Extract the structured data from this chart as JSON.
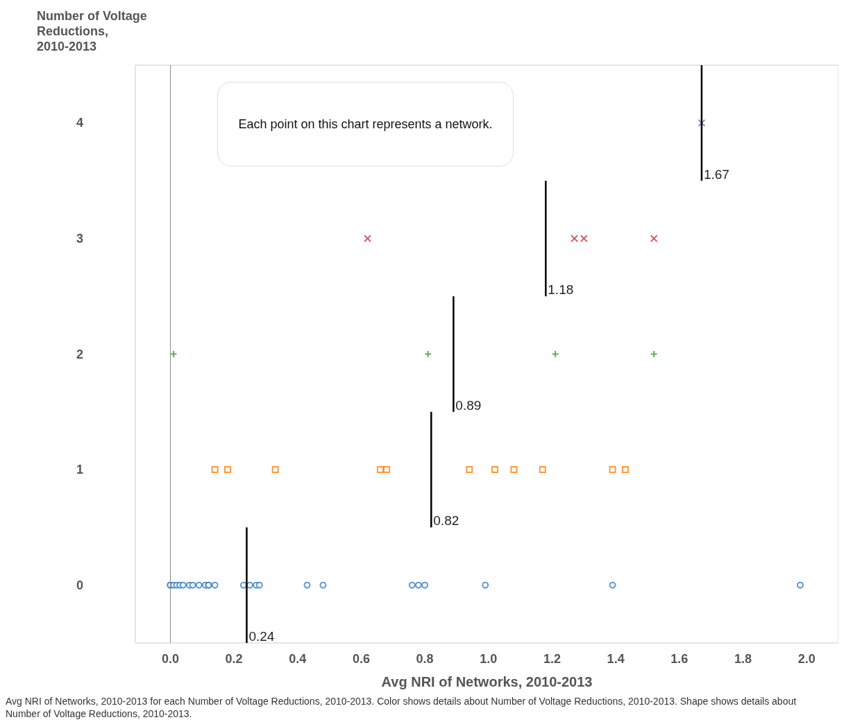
{
  "chart_data": {
    "type": "scatter",
    "ylabel": "Number of Voltage Reductions, 2010-2013",
    "xlabel": "Avg NRI of Networks, 2010-2013",
    "xlim": [
      -0.11,
      2.1
    ],
    "xticks": [
      {
        "value": 0,
        "label": "0.0"
      },
      {
        "value": 0.2,
        "label": "0.2"
      },
      {
        "value": 0.4,
        "label": "0.4"
      },
      {
        "value": 0.6,
        "label": "0.6"
      },
      {
        "value": 0.8,
        "label": "0.8"
      },
      {
        "value": 1,
        "label": "1.0"
      },
      {
        "value": 1.2,
        "label": "1.2"
      },
      {
        "value": 1.4,
        "label": "1.4"
      },
      {
        "value": 1.6,
        "label": "1.6"
      },
      {
        "value": 1.8,
        "label": "1.8"
      },
      {
        "value": 2,
        "label": "2.0"
      }
    ],
    "ylim": [
      -0.5,
      4.5
    ],
    "yticks": [
      0,
      1,
      2,
      3,
      4
    ],
    "grid": false,
    "series": [
      {
        "color": "#3a7dbf",
        "marker": "circle",
        "x": [
          0.0,
          0.0,
          0.01,
          0.02,
          0.03,
          0.04,
          0.06,
          0.07,
          0.09,
          0.11,
          0.12,
          0.12,
          0.14,
          0.23,
          0.25,
          0.27,
          0.28,
          0.43,
          0.48,
          0.76,
          0.78,
          0.8,
          0.99,
          1.39,
          1.98
        ],
        "values": [
          0,
          0,
          0,
          0,
          0,
          0,
          0,
          0,
          0,
          0,
          0,
          0,
          0,
          0,
          0,
          0,
          0,
          0,
          0,
          0,
          0,
          0,
          0,
          0,
          0
        ]
      },
      {
        "color": "#ff7f0e",
        "marker": "square",
        "x": [
          0.14,
          0.18,
          0.33,
          0.66,
          0.68,
          0.94,
          1.02,
          1.08,
          1.17,
          1.39,
          1.43
        ],
        "values": [
          1,
          1,
          1,
          1,
          1,
          1,
          1,
          1,
          1,
          1,
          1
        ]
      },
      {
        "color": "#2ca02c",
        "marker": "cross",
        "x": [
          0.01,
          0.81,
          1.21,
          1.52
        ],
        "values": [
          2,
          2,
          2,
          2
        ]
      },
      {
        "color": "#d62728",
        "marker": "x",
        "x": [
          0.62,
          1.27,
          1.3,
          1.52
        ],
        "values": [
          3,
          3,
          3,
          3
        ]
      },
      {
        "color": "#9467bd",
        "marker": "x",
        "x": [
          1.67
        ],
        "values": [
          4
        ]
      },
      {
        "type": "line",
        "color": "#000000",
        "marker": "none",
        "x": [
          0.24,
          0.24
        ],
        "values": [
          -0.5,
          0.5
        ]
      },
      {
        "type": "line",
        "color": "#000000",
        "marker": "none",
        "x": [
          0.82,
          0.82
        ],
        "values": [
          0.5,
          1.5
        ]
      },
      {
        "type": "line",
        "color": "#000000",
        "marker": "none",
        "x": [
          0.89,
          0.89
        ],
        "values": [
          1.5,
          2.5
        ]
      },
      {
        "type": "line",
        "color": "#000000",
        "marker": "none",
        "x": [
          1.18,
          1.18
        ],
        "values": [
          2.5,
          3.5
        ]
      },
      {
        "type": "line",
        "color": "#000000",
        "marker": "none",
        "x": [
          1.67,
          1.67
        ],
        "values": [
          3.5,
          4.5
        ]
      }
    ],
    "ref_lines": [
      {
        "axis": "x",
        "value": 0,
        "color": "#888888"
      }
    ],
    "annotations": [
      {
        "text": "0.24",
        "x": 0.24,
        "y": -0.5
      },
      {
        "text": "0.82",
        "x": 0.82,
        "y": 0.5
      },
      {
        "text": "0.89",
        "x": 0.89,
        "y": 1.5
      },
      {
        "text": "1.18",
        "x": 1.18,
        "y": 2.5
      },
      {
        "text": "1.67",
        "x": 1.67,
        "y": 3.5
      },
      "Each point on this chart represents a network.",
      "Avg NRI of Networks, 2010-2013 for each Number of Voltage Reductions, 2010-2013.  Color shows details about Number of Voltage Reductions, 2010-2013.  Shape shows details about Number of Voltage Reductions, 2010-2013."
    ]
  }
}
